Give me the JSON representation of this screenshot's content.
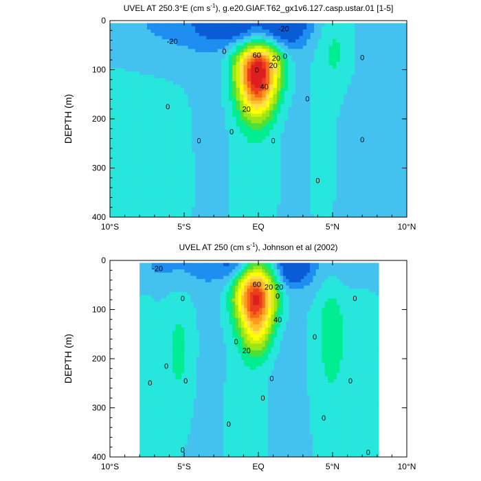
{
  "palette": [
    "#0a5cd6",
    "#1e8ef0",
    "#44c2ef",
    "#27e7dd",
    "#00ed92",
    "#49e13a",
    "#9ae617",
    "#d4ef0e",
    "#ffff00",
    "#ffe04b",
    "#ffc229",
    "#fc9b1f",
    "#f56a19",
    "#eb3d1d",
    "#de1f1f"
  ],
  "chart_data": [
    {
      "type": "contour",
      "title": "UVEL AT 250.3°E (cm s⁻¹), g.e20.GIAF.T62_gx1v6.127.casp.ustar.01 [1-5]",
      "title_parts": [
        "UVEL AT 250.3",
        "°",
        "E (cm s",
        "-1",
        "), g.e20.GIAF.T62_gx1v6.127.casp.ustar.01 [1-5]"
      ],
      "ylabel": "DEPTH (m)",
      "xlim": [
        -10,
        10
      ],
      "ylim": [
        400,
        0
      ],
      "xticks": [
        {
          "v": -10,
          "label": "10°S"
        },
        {
          "v": -5,
          "label": "5°S"
        },
        {
          "v": 0,
          "label": "EQ"
        },
        {
          "v": 5,
          "label": "5°N"
        },
        {
          "v": 10,
          "label": "10°N"
        }
      ],
      "yticks": [
        0,
        100,
        200,
        300,
        400
      ],
      "data_extent": {
        "lat": [
          -10,
          10
        ],
        "depth": [
          5,
          400
        ]
      },
      "contour_interval": 10,
      "contour_range": [
        -30,
        110
      ],
      "features": [
        {
          "name": "equatorial-undercurrent",
          "lat": 0.0,
          "depth": 88,
          "peak": 95
        },
        {
          "name": "surface-westward-core",
          "lat": -1.8,
          "depth": 0,
          "peak": -30
        },
        {
          "name": "surface-westward-core",
          "lat": 1.7,
          "depth": 0,
          "peak": -30
        },
        {
          "name": "nsccn-eastward-core",
          "lat": 5.2,
          "depth": 45,
          "peak": 13
        }
      ],
      "contour_labels": [
        {
          "text": "-20",
          "lat": -5.8,
          "depth": 42
        },
        {
          "text": "-20",
          "lat": 1.7,
          "depth": 16
        },
        {
          "text": "60",
          "lat": -0.1,
          "depth": 70
        },
        {
          "text": "20",
          "lat": 1.2,
          "depth": 76
        },
        {
          "text": "20",
          "lat": 1.0,
          "depth": 91
        },
        {
          "text": "40",
          "lat": 0.4,
          "depth": 134
        },
        {
          "text": "20",
          "lat": -0.8,
          "depth": 180
        },
        {
          "text": "0",
          "lat": -2.3,
          "depth": 62
        },
        {
          "text": "0",
          "lat": 1.8,
          "depth": 72
        },
        {
          "text": "0",
          "lat": -6.1,
          "depth": 175
        },
        {
          "text": "0",
          "lat": -4.0,
          "depth": 244
        },
        {
          "text": "0",
          "lat": -1.8,
          "depth": 226
        },
        {
          "text": "0",
          "lat": -0.1,
          "depth": 100
        },
        {
          "text": "0",
          "lat": 1.0,
          "depth": 244
        },
        {
          "text": "0",
          "lat": 3.3,
          "depth": 159
        },
        {
          "text": "0",
          "lat": 4.0,
          "depth": 325
        },
        {
          "text": "0",
          "lat": 7.0,
          "depth": 75
        },
        {
          "text": "0",
          "lat": 7.0,
          "depth": 242
        }
      ]
    },
    {
      "type": "contour",
      "title": "UVEL AT 250 (cm s⁻¹), Johnson et al (2002)",
      "title_parts": [
        "UVEL AT 250 (cm s",
        "-1",
        "), Johnson et al (2002)"
      ],
      "ylabel": "DEPTH (m)",
      "xlim": [
        -10,
        10
      ],
      "ylim": [
        400,
        0
      ],
      "xticks": [
        {
          "v": -10,
          "label": "10°S"
        },
        {
          "v": -5,
          "label": "5°S"
        },
        {
          "v": 0,
          "label": "EQ"
        },
        {
          "v": 5,
          "label": "5°N"
        },
        {
          "v": 10,
          "label": "10°N"
        }
      ],
      "yticks": [
        0,
        100,
        200,
        300,
        400
      ],
      "data_extent": {
        "lat": [
          -8,
          8.1
        ],
        "depth": [
          5,
          400
        ]
      },
      "contour_interval": 10,
      "contour_range": [
        -30,
        110
      ],
      "features": [
        {
          "name": "equatorial-undercurrent",
          "lat": -0.2,
          "depth": 70,
          "peak": 100
        },
        {
          "name": "surface-westward-core",
          "lat": 2.3,
          "depth": 15,
          "peak": -30
        },
        {
          "name": "surface-westward-core",
          "lat": -1.6,
          "depth": 10,
          "peak": -20
        },
        {
          "name": "sccn-eastward-core",
          "lat": -5.3,
          "depth": 185,
          "peak": 13
        },
        {
          "name": "nsccn-eastward-core",
          "lat": 4.9,
          "depth": 140,
          "peak": 16
        }
      ],
      "contour_labels": [
        {
          "text": "-20",
          "lat": -6.8,
          "depth": 16
        },
        {
          "text": "60",
          "lat": -0.1,
          "depth": 48
        },
        {
          "text": "20",
          "lat": 0.7,
          "depth": 54
        },
        {
          "text": "20",
          "lat": 1.4,
          "depth": 54
        },
        {
          "text": "40",
          "lat": 1.3,
          "depth": 120
        },
        {
          "text": "20",
          "lat": -0.8,
          "depth": 183
        },
        {
          "text": "0",
          "lat": -5.1,
          "depth": 77
        },
        {
          "text": "0",
          "lat": -6.2,
          "depth": 215
        },
        {
          "text": "0",
          "lat": -7.3,
          "depth": 249
        },
        {
          "text": "0",
          "lat": -4.9,
          "depth": 245
        },
        {
          "text": "0",
          "lat": -1.5,
          "depth": 165
        },
        {
          "text": "0",
          "lat": -2.0,
          "depth": 333
        },
        {
          "text": "0",
          "lat": 1.3,
          "depth": 72
        },
        {
          "text": "0",
          "lat": 0.9,
          "depth": 240
        },
        {
          "text": "0",
          "lat": 0.3,
          "depth": 280
        },
        {
          "text": "0",
          "lat": 3.8,
          "depth": 155
        },
        {
          "text": "0",
          "lat": 4.4,
          "depth": 320
        },
        {
          "text": "0",
          "lat": 6.5,
          "depth": 77
        },
        {
          "text": "0",
          "lat": 6.2,
          "depth": 245
        },
        {
          "text": "0",
          "lat": -5.1,
          "depth": 385
        },
        {
          "text": "0",
          "lat": 7.4,
          "depth": 390
        }
      ]
    }
  ]
}
